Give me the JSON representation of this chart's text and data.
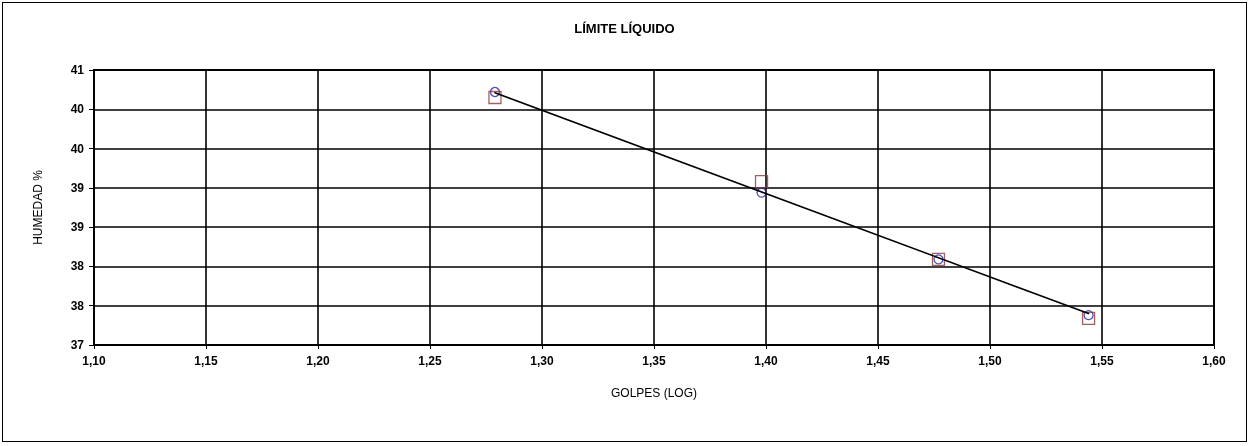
{
  "chart_data": {
    "type": "scatter",
    "title": "LÍMITE LÍQUIDO",
    "xlabel": "GOLPES (LOG)",
    "ylabel": "HUMEDAD %",
    "series": [
      {
        "marker": "circle",
        "color": "#2020a0",
        "x": [
          1.279,
          1.398,
          1.477,
          1.544
        ],
        "values": [
          40.22,
          38.94,
          38.09,
          37.38
        ]
      },
      {
        "marker": "square",
        "color": "#8b3a3a",
        "x": [
          1.279,
          1.398,
          1.477,
          1.544
        ],
        "values": [
          40.15,
          39.08,
          38.09,
          37.34
        ]
      },
      {
        "type": "line",
        "marker": "none",
        "color": "#000000",
        "x": [
          1.279,
          1.544
        ],
        "values": [
          40.21,
          37.4
        ]
      }
    ],
    "xlim": [
      1.1,
      1.6
    ],
    "xticks": [
      {
        "value": 1.1,
        "label": "1,10"
      },
      {
        "value": 1.15,
        "label": "1,15"
      },
      {
        "value": 1.2,
        "label": "1,20"
      },
      {
        "value": 1.25,
        "label": "1,25"
      },
      {
        "value": 1.3,
        "label": "1,30"
      },
      {
        "value": 1.35,
        "label": "1,35"
      },
      {
        "value": 1.4,
        "label": "1,40"
      },
      {
        "value": 1.45,
        "label": "1,45"
      },
      {
        "value": 1.5,
        "label": "1,50"
      },
      {
        "value": 1.55,
        "label": "1,55"
      },
      {
        "value": 1.6,
        "label": "1,60"
      }
    ],
    "ylim": [
      37,
      40.5
    ],
    "yticks": [
      {
        "value": 37,
        "label": "37"
      },
      {
        "value": 37.5,
        "label": "38"
      },
      {
        "value": 38,
        "label": "38"
      },
      {
        "value": 38.5,
        "label": "39"
      },
      {
        "value": 39,
        "label": "39"
      },
      {
        "value": 39.5,
        "label": "40"
      },
      {
        "value": 40,
        "label": "40"
      },
      {
        "value": 40.5,
        "label": "41"
      }
    ],
    "grid": true
  }
}
